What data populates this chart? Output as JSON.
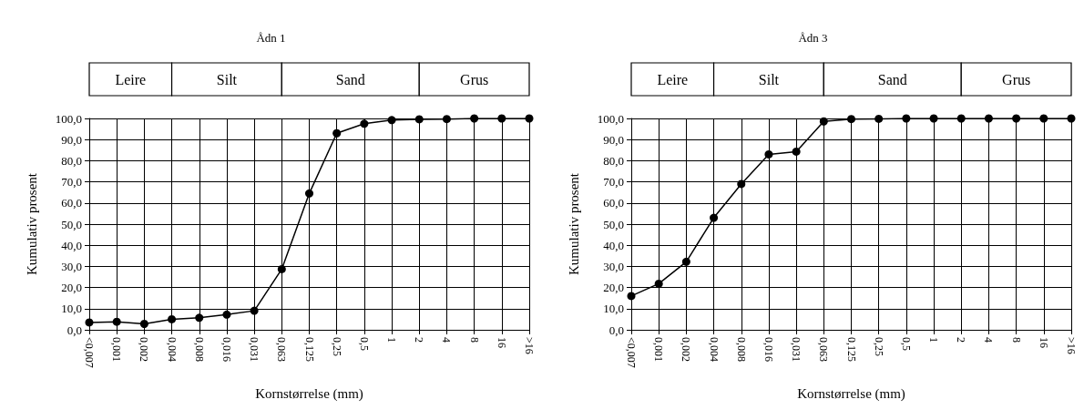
{
  "chart_data": [
    {
      "type": "line",
      "title": "Ådn 1",
      "xlabel": "Kornstørrelse (mm)",
      "ylabel": "Kumulativ prosent",
      "categories": [
        "<0,007",
        "0,001",
        "0,002",
        "0,004",
        "0,008",
        "0,016",
        "0,031",
        "0,063",
        "0,125",
        "0,25",
        "0,5",
        "1",
        "2",
        "4",
        "8",
        "16",
        ">16"
      ],
      "series": [
        {
          "color": "#000000",
          "values": [
            3.5,
            3.8,
            2.8,
            5,
            5.7,
            7.2,
            9,
            28.7,
            64.5,
            93,
            97.5,
            99.2,
            99.6,
            99.7,
            100,
            100,
            100
          ]
        }
      ],
      "ylim": [
        0,
        100
      ],
      "yticks": [
        {
          "value": 0,
          "label": "0,0"
        },
        {
          "value": 10,
          "label": "10,0"
        },
        {
          "value": 20,
          "label": "20,0"
        },
        {
          "value": 30,
          "label": "30,0"
        },
        {
          "value": 40,
          "label": "40,0"
        },
        {
          "value": 50,
          "label": "50,0"
        },
        {
          "value": 60,
          "label": "60,0"
        },
        {
          "value": 70,
          "label": "70,0"
        },
        {
          "value": 80,
          "label": "80,0"
        },
        {
          "value": 90,
          "label": "90,0"
        },
        {
          "value": 100,
          "label": "100,0"
        }
      ],
      "annotations": [
        "Leire",
        "Silt",
        "Sand",
        "Grus"
      ],
      "grid": true,
      "marker": "circle",
      "line_style": "solid"
    },
    {
      "type": "line",
      "title": "Ådn 3",
      "xlabel": "Kornstørrelse (mm)",
      "ylabel": "Kumulativ prosent",
      "categories": [
        "<0,007",
        "0,001",
        "0,002",
        "0,004",
        "0,008",
        "0,016",
        "0,031",
        "0,063",
        "0,125",
        "0,25",
        "0,5",
        "1",
        "2",
        "4",
        "8",
        "16",
        ">16"
      ],
      "series": [
        {
          "color": "#000000",
          "values": [
            16,
            21.8,
            32.2,
            53,
            69,
            83,
            84.3,
            98.6,
            99.7,
            99.8,
            100,
            100,
            100,
            100,
            100,
            100,
            100
          ]
        }
      ],
      "ylim": [
        0,
        100
      ],
      "yticks": [
        {
          "value": 0,
          "label": "0,0"
        },
        {
          "value": 10,
          "label": "10,0"
        },
        {
          "value": 20,
          "label": "20,0"
        },
        {
          "value": 30,
          "label": "30,0"
        },
        {
          "value": 40,
          "label": "40,0"
        },
        {
          "value": 50,
          "label": "50,0"
        },
        {
          "value": 60,
          "label": "60,0"
        },
        {
          "value": 70,
          "label": "70,0"
        },
        {
          "value": 80,
          "label": "80,0"
        },
        {
          "value": 90,
          "label": "90,0"
        },
        {
          "value": 100,
          "label": "100,0"
        }
      ],
      "annotations": [
        "Leire",
        "Silt",
        "Sand",
        "Grus"
      ],
      "grid": true,
      "marker": "circle",
      "line_style": "solid"
    }
  ]
}
